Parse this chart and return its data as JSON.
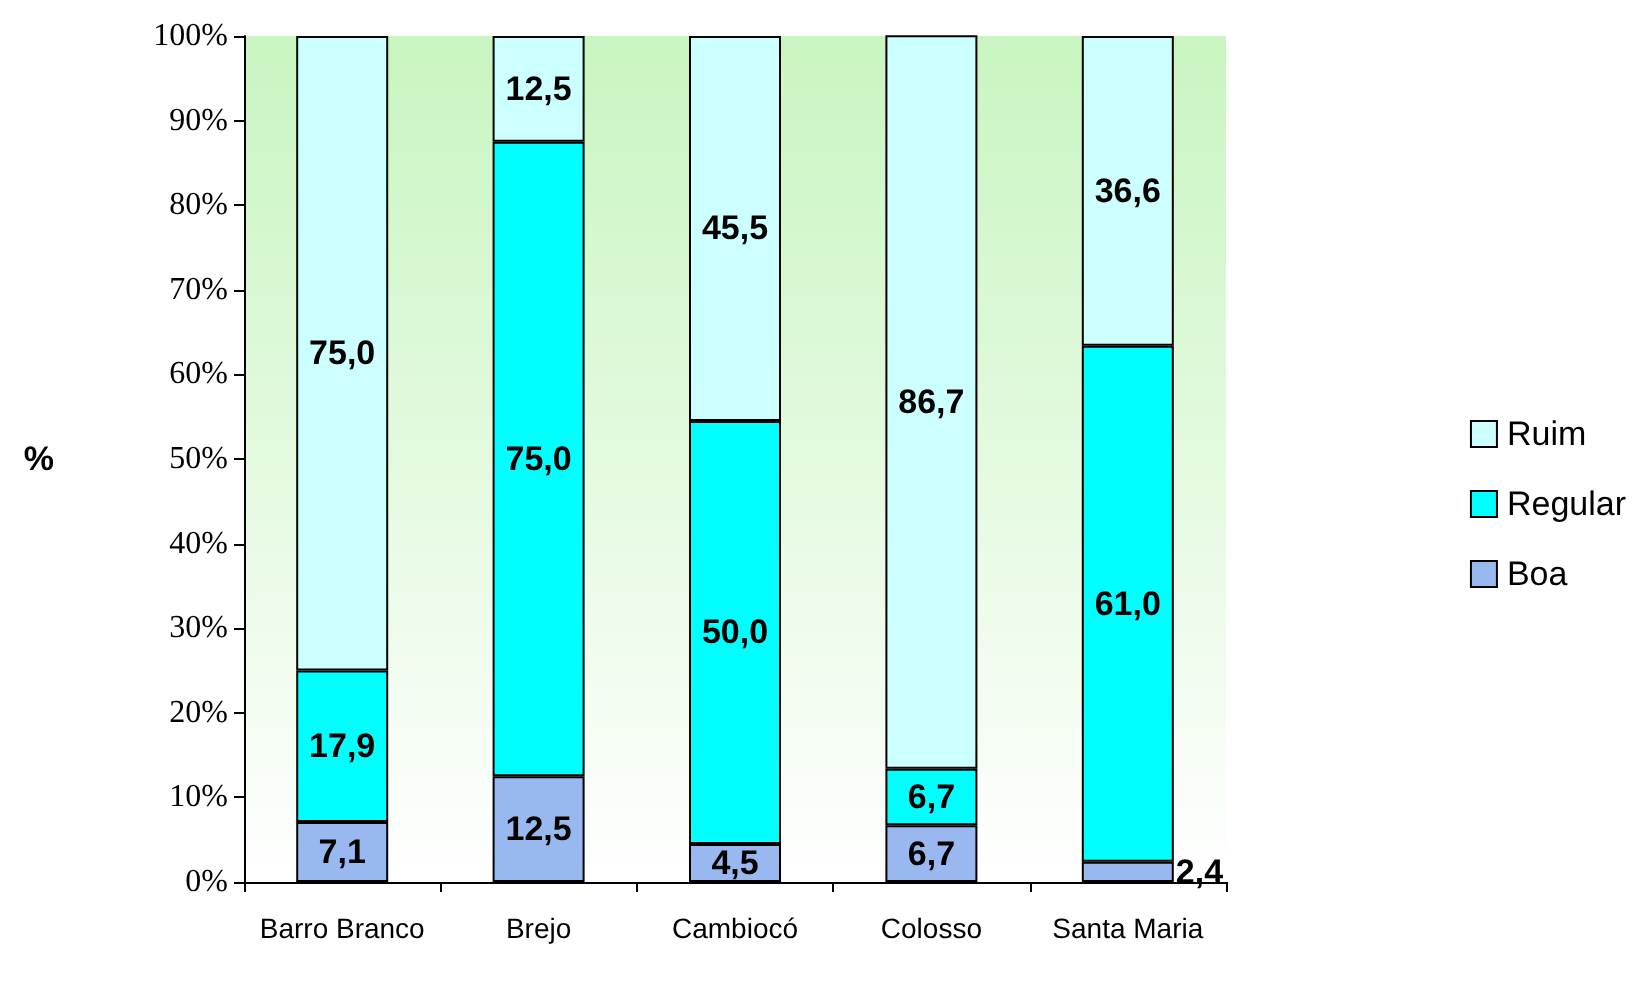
{
  "chart_data": {
    "type": "bar",
    "stacked": true,
    "ylabel": "%",
    "categories": [
      "Barro Branco",
      "Brejo",
      "Cambiocó",
      "Colosso",
      "Santa Maria"
    ],
    "series": [
      {
        "name": "Boa",
        "color": "#99b8f0",
        "values": [
          7.1,
          12.5,
          4.5,
          6.7,
          2.4
        ],
        "value_labels": [
          "7,1",
          "12,5",
          "4,5",
          "6,7",
          "2,4"
        ]
      },
      {
        "name": "Regular",
        "color": "#00ffff",
        "values": [
          17.9,
          75.0,
          50.0,
          6.7,
          61.0
        ],
        "value_labels": [
          "17,9",
          "75,0",
          "50,0",
          "6,7",
          "61,0"
        ]
      },
      {
        "name": "Ruim",
        "color": "#ccffff",
        "values": [
          75.0,
          12.5,
          45.5,
          86.7,
          36.6
        ],
        "value_labels": [
          "75,0",
          "12,5",
          "45,5",
          "86,7",
          "36,6"
        ]
      }
    ],
    "ylim": [
      0,
      100
    ],
    "yticks": [
      {
        "value": 0,
        "label": "0%"
      },
      {
        "value": 10,
        "label": "10%"
      },
      {
        "value": 20,
        "label": "20%"
      },
      {
        "value": 30,
        "label": "30%"
      },
      {
        "value": 40,
        "label": "40%"
      },
      {
        "value": 50,
        "label": "50%"
      },
      {
        "value": 60,
        "label": "60%"
      },
      {
        "value": 70,
        "label": "70%"
      },
      {
        "value": 80,
        "label": "80%"
      },
      {
        "value": 90,
        "label": "90%"
      },
      {
        "value": 100,
        "label": "100%"
      }
    ],
    "grid": false,
    "legend": "right"
  }
}
